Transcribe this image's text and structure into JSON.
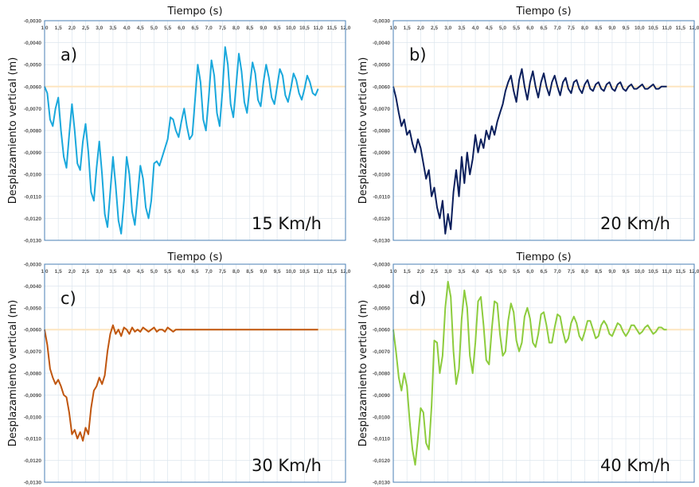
{
  "chart_data": [
    {
      "type": "line",
      "panel_label": "a)",
      "speed_label": "15 Km/h",
      "title": "Tiempo (s)",
      "ylabel": "Desplazamiento vertical (m)",
      "color": "#1aa8dc",
      "xlim": [
        1.0,
        12.0
      ],
      "ylim": [
        -0.013,
        -0.003
      ],
      "reference_y": -0.006,
      "series": [
        {
          "x": [
            1.0,
            1.1,
            1.2,
            1.3,
            1.4,
            1.5,
            1.6,
            1.7,
            1.8,
            1.9,
            2.0,
            2.1,
            2.2,
            2.3,
            2.4,
            2.5,
            2.6,
            2.7,
            2.8,
            2.9,
            3.0,
            3.1,
            3.2,
            3.3,
            3.4,
            3.5,
            3.6,
            3.7,
            3.8,
            3.9,
            4.0,
            4.1,
            4.2,
            4.3,
            4.4,
            4.5,
            4.6,
            4.7,
            4.8,
            4.9,
            5.0,
            5.1,
            5.2,
            5.3,
            5.4,
            5.5,
            5.6,
            5.7,
            5.8,
            5.9,
            6.0,
            6.1,
            6.2,
            6.3,
            6.4,
            6.5,
            6.6,
            6.7,
            6.8,
            6.9,
            7.0,
            7.1,
            7.2,
            7.3,
            7.4,
            7.5,
            7.6,
            7.7,
            7.8,
            7.9,
            8.0,
            8.1,
            8.2,
            8.3,
            8.4,
            8.5,
            8.6,
            8.7,
            8.8,
            8.9,
            9.0,
            9.1,
            9.2,
            9.3,
            9.4,
            9.5,
            9.6,
            9.7,
            9.8,
            9.9,
            10.0,
            10.1,
            10.2,
            10.3,
            10.4,
            10.5,
            10.6,
            10.7,
            10.8,
            10.9,
            11.0
          ],
          "y": [
            -0.006,
            -0.0063,
            -0.0075,
            -0.0078,
            -0.007,
            -0.0065,
            -0.008,
            -0.0092,
            -0.0097,
            -0.0082,
            -0.0068,
            -0.008,
            -0.0095,
            -0.0098,
            -0.0085,
            -0.0077,
            -0.009,
            -0.0108,
            -0.0112,
            -0.0097,
            -0.0085,
            -0.01,
            -0.0118,
            -0.0124,
            -0.0108,
            -0.0092,
            -0.0105,
            -0.0121,
            -0.0127,
            -0.0112,
            -0.0092,
            -0.01,
            -0.0117,
            -0.0123,
            -0.011,
            -0.0096,
            -0.0102,
            -0.0115,
            -0.012,
            -0.0112,
            -0.0095,
            -0.0094,
            -0.0096,
            -0.0092,
            -0.0088,
            -0.0084,
            -0.0074,
            -0.0075,
            -0.008,
            -0.0083,
            -0.0076,
            -0.007,
            -0.0078,
            -0.0084,
            -0.0082,
            -0.0066,
            -0.005,
            -0.0058,
            -0.0075,
            -0.008,
            -0.0065,
            -0.0048,
            -0.0055,
            -0.0072,
            -0.0078,
            -0.0062,
            -0.0042,
            -0.005,
            -0.0068,
            -0.0074,
            -0.006,
            -0.0045,
            -0.0053,
            -0.0067,
            -0.0072,
            -0.006,
            -0.0049,
            -0.0054,
            -0.0066,
            -0.0069,
            -0.0058,
            -0.005,
            -0.0056,
            -0.0065,
            -0.0068,
            -0.006,
            -0.0052,
            -0.0055,
            -0.0064,
            -0.0067,
            -0.0061,
            -0.0054,
            -0.0057,
            -0.0063,
            -0.0066,
            -0.0061,
            -0.0055,
            -0.0058,
            -0.0063,
            -0.0064,
            -0.0061
          ]
        }
      ]
    },
    {
      "type": "line",
      "panel_label": "b)",
      "speed_label": "20 Km/h",
      "title": "Tiempo (s)",
      "ylabel": "Desplazamiento vertical (m)",
      "color": "#0b1f5c",
      "xlim": [
        1.0,
        12.0
      ],
      "ylim": [
        -0.013,
        -0.003
      ],
      "reference_y": -0.006,
      "series": [
        {
          "x": [
            1.0,
            1.1,
            1.2,
            1.3,
            1.4,
            1.5,
            1.6,
            1.7,
            1.8,
            1.9,
            2.0,
            2.1,
            2.2,
            2.3,
            2.4,
            2.5,
            2.6,
            2.7,
            2.8,
            2.9,
            3.0,
            3.1,
            3.2,
            3.3,
            3.4,
            3.5,
            3.6,
            3.7,
            3.8,
            3.9,
            4.0,
            4.1,
            4.2,
            4.3,
            4.4,
            4.5,
            4.6,
            4.7,
            4.8,
            4.9,
            5.0,
            5.1,
            5.2,
            5.3,
            5.4,
            5.5,
            5.6,
            5.7,
            5.8,
            5.9,
            6.0,
            6.1,
            6.2,
            6.3,
            6.4,
            6.5,
            6.6,
            6.7,
            6.8,
            6.9,
            7.0,
            7.1,
            7.2,
            7.3,
            7.4,
            7.5,
            7.6,
            7.7,
            7.8,
            7.9,
            8.0,
            8.1,
            8.2,
            8.3,
            8.4,
            8.5,
            8.6,
            8.7,
            8.8,
            8.9,
            9.0,
            9.1,
            9.2,
            9.3,
            9.4,
            9.5,
            9.6,
            9.7,
            9.8,
            9.9,
            10.0,
            10.1,
            10.2,
            10.3,
            10.4,
            10.5,
            10.6,
            10.7,
            10.8,
            10.9,
            11.0
          ],
          "y": [
            -0.006,
            -0.0065,
            -0.0072,
            -0.0078,
            -0.0075,
            -0.0082,
            -0.008,
            -0.0086,
            -0.009,
            -0.0084,
            -0.0088,
            -0.0095,
            -0.0102,
            -0.0098,
            -0.011,
            -0.0106,
            -0.0115,
            -0.012,
            -0.0112,
            -0.0127,
            -0.0118,
            -0.0125,
            -0.0108,
            -0.0098,
            -0.011,
            -0.0092,
            -0.0104,
            -0.009,
            -0.01,
            -0.0093,
            -0.0082,
            -0.009,
            -0.0084,
            -0.0088,
            -0.008,
            -0.0084,
            -0.0078,
            -0.0082,
            -0.0076,
            -0.0072,
            -0.0068,
            -0.0062,
            -0.0058,
            -0.0055,
            -0.0062,
            -0.0067,
            -0.0057,
            -0.0052,
            -0.006,
            -0.0066,
            -0.0058,
            -0.0053,
            -0.006,
            -0.0065,
            -0.0058,
            -0.0054,
            -0.006,
            -0.0064,
            -0.0058,
            -0.0055,
            -0.006,
            -0.0064,
            -0.0058,
            -0.0056,
            -0.0061,
            -0.0063,
            -0.0058,
            -0.0057,
            -0.0061,
            -0.0063,
            -0.0059,
            -0.0057,
            -0.0061,
            -0.0062,
            -0.0059,
            -0.0058,
            -0.0061,
            -0.0062,
            -0.0059,
            -0.0058,
            -0.0061,
            -0.0062,
            -0.0059,
            -0.0058,
            -0.0061,
            -0.0062,
            -0.006,
            -0.0059,
            -0.0061,
            -0.0061,
            -0.006,
            -0.0059,
            -0.0061,
            -0.0061,
            -0.006,
            -0.0059,
            -0.0061,
            -0.0061,
            -0.006,
            -0.006,
            -0.006
          ]
        }
      ]
    },
    {
      "type": "line",
      "panel_label": "c)",
      "speed_label": "30 Km/h",
      "title": "Tiempo (s)",
      "ylabel": "Desplazamiento vertical (m)",
      "color": "#c0560f",
      "xlim": [
        1.0,
        12.0
      ],
      "ylim": [
        -0.013,
        -0.003
      ],
      "reference_y": -0.006,
      "series": [
        {
          "x": [
            1.0,
            1.1,
            1.2,
            1.3,
            1.4,
            1.5,
            1.6,
            1.7,
            1.8,
            1.9,
            2.0,
            2.1,
            2.2,
            2.3,
            2.4,
            2.5,
            2.6,
            2.7,
            2.8,
            2.9,
            3.0,
            3.1,
            3.2,
            3.3,
            3.4,
            3.5,
            3.6,
            3.7,
            3.8,
            3.9,
            4.0,
            4.1,
            4.2,
            4.3,
            4.4,
            4.5,
            4.6,
            4.7,
            4.8,
            4.9,
            5.0,
            5.1,
            5.2,
            5.3,
            5.4,
            5.5,
            5.6,
            5.7,
            5.8,
            5.9,
            6.0,
            6.5,
            7.0,
            7.5,
            8.0,
            8.5,
            9.0,
            9.5,
            10.0,
            10.5,
            11.0
          ],
          "y": [
            -0.006,
            -0.0067,
            -0.0078,
            -0.0082,
            -0.0085,
            -0.0083,
            -0.0086,
            -0.009,
            -0.0091,
            -0.0098,
            -0.0108,
            -0.0106,
            -0.011,
            -0.0107,
            -0.0111,
            -0.0105,
            -0.0108,
            -0.0096,
            -0.0088,
            -0.0086,
            -0.0082,
            -0.0085,
            -0.0081,
            -0.007,
            -0.0062,
            -0.0058,
            -0.0062,
            -0.006,
            -0.0063,
            -0.0059,
            -0.006,
            -0.0062,
            -0.0059,
            -0.0061,
            -0.006,
            -0.0061,
            -0.0059,
            -0.006,
            -0.0061,
            -0.006,
            -0.0059,
            -0.0061,
            -0.006,
            -0.006,
            -0.0061,
            -0.0059,
            -0.006,
            -0.0061,
            -0.006,
            -0.006,
            -0.006,
            -0.006,
            -0.006,
            -0.006,
            -0.006,
            -0.006,
            -0.006,
            -0.006,
            -0.006,
            -0.006,
            -0.006
          ]
        }
      ]
    },
    {
      "type": "line",
      "panel_label": "d)",
      "speed_label": "40 Km/h",
      "title": "Tiempo (s)",
      "ylabel": "Desplazamiento vertical (m)",
      "color": "#8dcc3e",
      "xlim": [
        1.0,
        12.0
      ],
      "ylim": [
        -0.013,
        -0.003
      ],
      "reference_y": -0.006,
      "series": [
        {
          "x": [
            1.0,
            1.1,
            1.2,
            1.3,
            1.4,
            1.5,
            1.6,
            1.7,
            1.8,
            1.9,
            2.0,
            2.1,
            2.2,
            2.3,
            2.4,
            2.5,
            2.6,
            2.7,
            2.8,
            2.9,
            3.0,
            3.1,
            3.2,
            3.3,
            3.4,
            3.5,
            3.6,
            3.7,
            3.8,
            3.9,
            4.0,
            4.1,
            4.2,
            4.3,
            4.4,
            4.5,
            4.6,
            4.7,
            4.8,
            4.9,
            5.0,
            5.1,
            5.2,
            5.3,
            5.4,
            5.5,
            5.6,
            5.7,
            5.8,
            5.9,
            6.0,
            6.1,
            6.2,
            6.3,
            6.4,
            6.5,
            6.6,
            6.7,
            6.8,
            6.9,
            7.0,
            7.1,
            7.2,
            7.3,
            7.4,
            7.5,
            7.6,
            7.7,
            7.8,
            7.9,
            8.0,
            8.1,
            8.2,
            8.3,
            8.4,
            8.5,
            8.6,
            8.7,
            8.8,
            8.9,
            9.0,
            9.1,
            9.2,
            9.3,
            9.4,
            9.5,
            9.6,
            9.7,
            9.8,
            9.9,
            10.0,
            10.1,
            10.2,
            10.3,
            10.4,
            10.5,
            10.6,
            10.7,
            10.8,
            10.9,
            11.0
          ],
          "y": [
            -0.006,
            -0.007,
            -0.0082,
            -0.0088,
            -0.008,
            -0.0086,
            -0.0102,
            -0.0115,
            -0.0122,
            -0.011,
            -0.0096,
            -0.0098,
            -0.0112,
            -0.0115,
            -0.0095,
            -0.0065,
            -0.0066,
            -0.008,
            -0.0072,
            -0.005,
            -0.0038,
            -0.0045,
            -0.007,
            -0.0085,
            -0.0078,
            -0.0055,
            -0.0042,
            -0.005,
            -0.0072,
            -0.008,
            -0.0066,
            -0.0047,
            -0.0045,
            -0.0058,
            -0.0074,
            -0.0076,
            -0.006,
            -0.0047,
            -0.0048,
            -0.0062,
            -0.0072,
            -0.007,
            -0.0056,
            -0.0048,
            -0.0052,
            -0.0065,
            -0.007,
            -0.0066,
            -0.0054,
            -0.005,
            -0.0055,
            -0.0066,
            -0.0068,
            -0.0062,
            -0.0053,
            -0.0052,
            -0.0058,
            -0.0066,
            -0.0066,
            -0.0059,
            -0.0053,
            -0.0054,
            -0.0061,
            -0.0066,
            -0.0064,
            -0.0057,
            -0.0054,
            -0.0057,
            -0.0063,
            -0.0065,
            -0.0061,
            -0.0056,
            -0.0056,
            -0.006,
            -0.0064,
            -0.0063,
            -0.0058,
            -0.0056,
            -0.0058,
            -0.0062,
            -0.0063,
            -0.006,
            -0.0057,
            -0.0058,
            -0.0061,
            -0.0063,
            -0.0061,
            -0.0058,
            -0.0058,
            -0.006,
            -0.0062,
            -0.0061,
            -0.0059,
            -0.0058,
            -0.006,
            -0.0062,
            -0.0061,
            -0.0059,
            -0.0059,
            -0.006,
            -0.006
          ]
        }
      ]
    }
  ],
  "axis": {
    "x_ticks": [
      "1,0",
      "1,5",
      "2,0",
      "2,5",
      "3,0",
      "3,5",
      "4,0",
      "4,5",
      "5,0",
      "5,5",
      "6,0",
      "6,5",
      "7,0",
      "7,5",
      "8,0",
      "8,5",
      "9,0",
      "9,5",
      "10,0",
      "10,5",
      "11,0",
      "11,5",
      "12,0"
    ],
    "y_ticks": [
      "-0,0030",
      "-0,0040",
      "-0,0050",
      "-0,0060",
      "-0,0070",
      "-0,0080",
      "-0,0090",
      "-0,0100",
      "-0,0110",
      "-0,0120",
      "-0,0130"
    ],
    "reference_color": "#fde6c0",
    "grid_color": "#dde6ee",
    "frame_color": "#4a7fb5"
  }
}
